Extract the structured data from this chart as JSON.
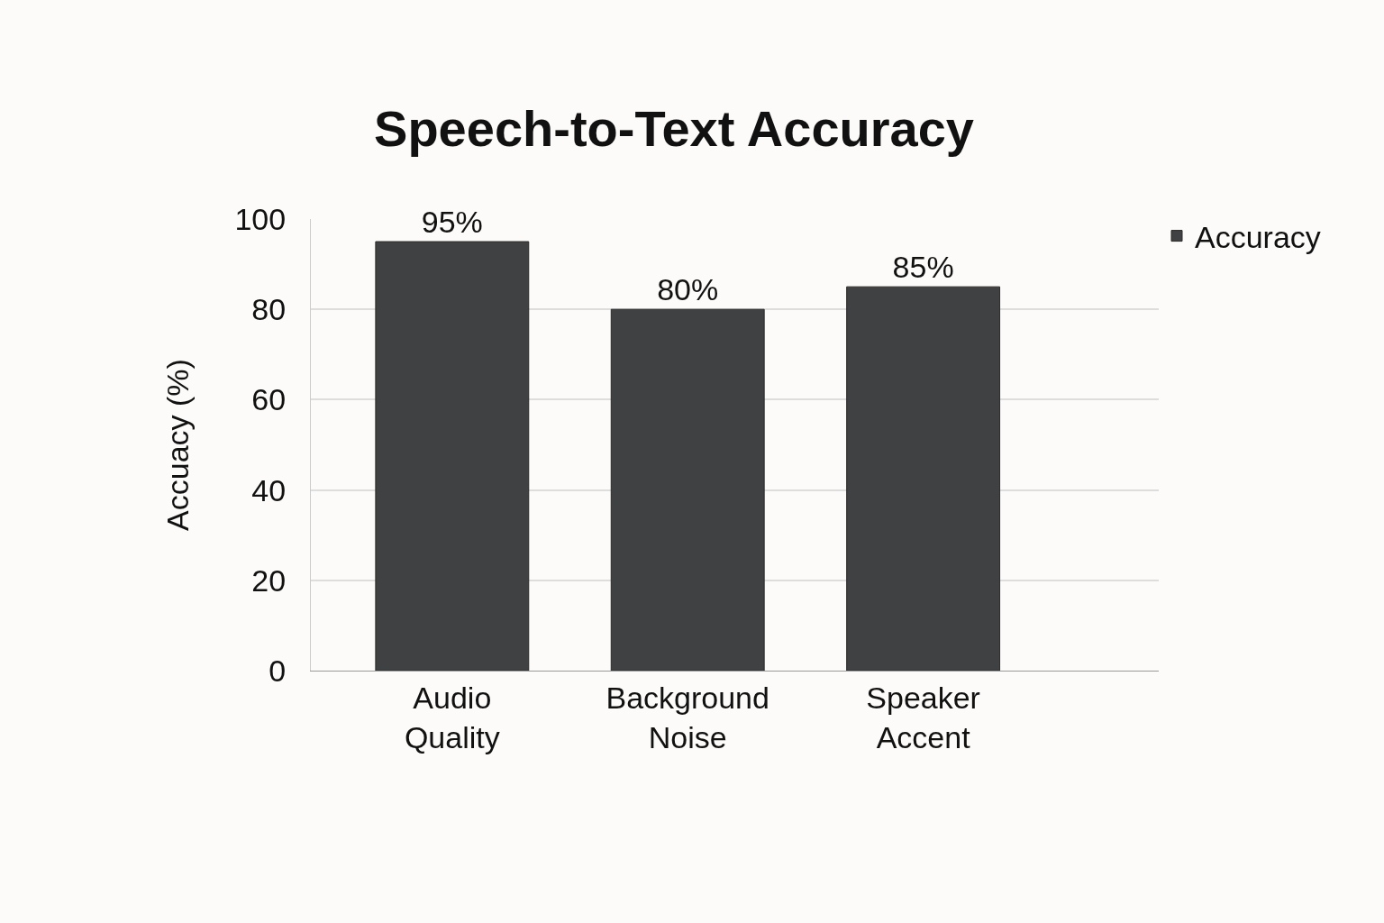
{
  "chart_data": {
    "type": "bar",
    "title": "Speech-to-Text Accuracy",
    "categories": [
      "Audio Quality",
      "Background Noise",
      "Speaker Accent"
    ],
    "series": [
      {
        "name": "Accuracy",
        "color": "#404143",
        "values": [
          95,
          80,
          85
        ],
        "value_labels": [
          "95%",
          "80%",
          "85%"
        ]
      }
    ],
    "ylabel": "Accuacy (%)",
    "ylim": [
      0,
      100
    ],
    "yticks": [
      0,
      20,
      40,
      60,
      80,
      100
    ],
    "grid": "y",
    "legend": "top right"
  }
}
